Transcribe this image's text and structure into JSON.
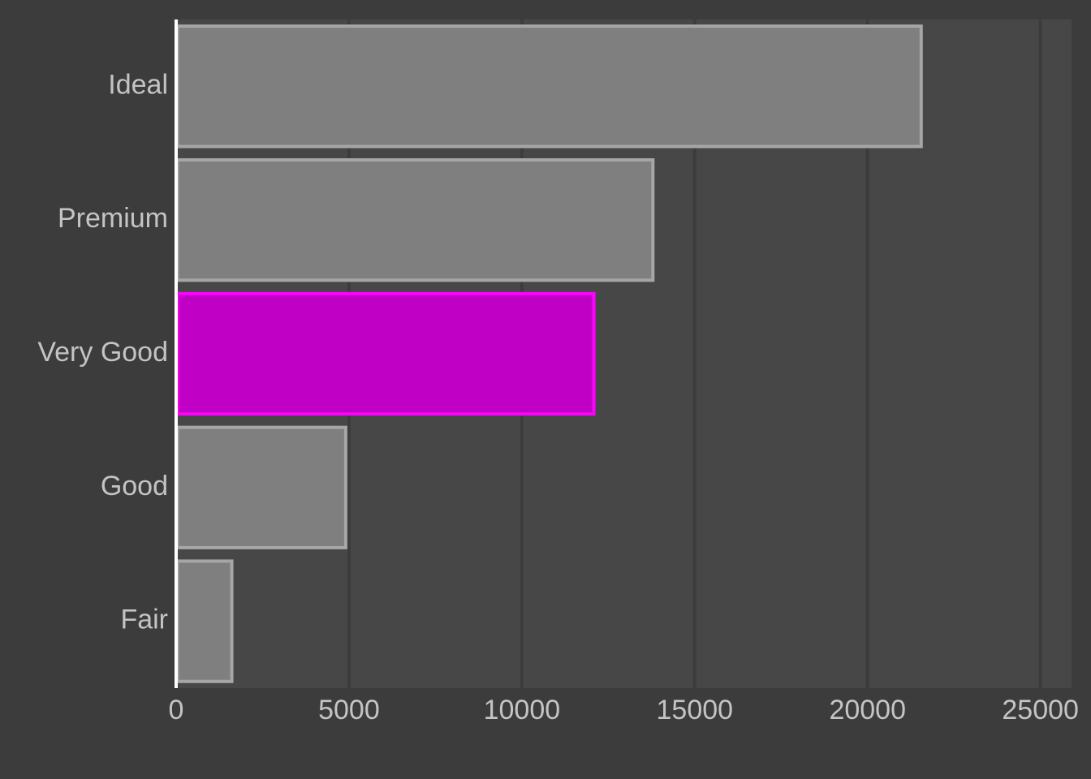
{
  "chart_data": {
    "type": "bar",
    "orientation": "horizontal",
    "title": "",
    "xlabel": "",
    "ylabel": "",
    "categories": [
      "Ideal",
      "Premium",
      "Very Good",
      "Good",
      "Fair"
    ],
    "values": [
      21551,
      13791,
      12082,
      4906,
      1610
    ],
    "highlight_category": "Very Good",
    "xlim": [
      0,
      25900
    ],
    "x_ticks": [
      0,
      5000,
      10000,
      15000,
      20000,
      25000
    ],
    "grid": true,
    "legend": "none",
    "colors": {
      "background": "#3c3c3c",
      "panel": "#474747",
      "grid": "#3c3c3c",
      "bar_fill": "#7f7f7f",
      "bar_stroke": "#a6a6a6",
      "highlight_fill": "#c000c4",
      "highlight_stroke": "#ff00ff",
      "axis_line": "#ffffff",
      "tick_label": "#c4c4c4"
    }
  }
}
